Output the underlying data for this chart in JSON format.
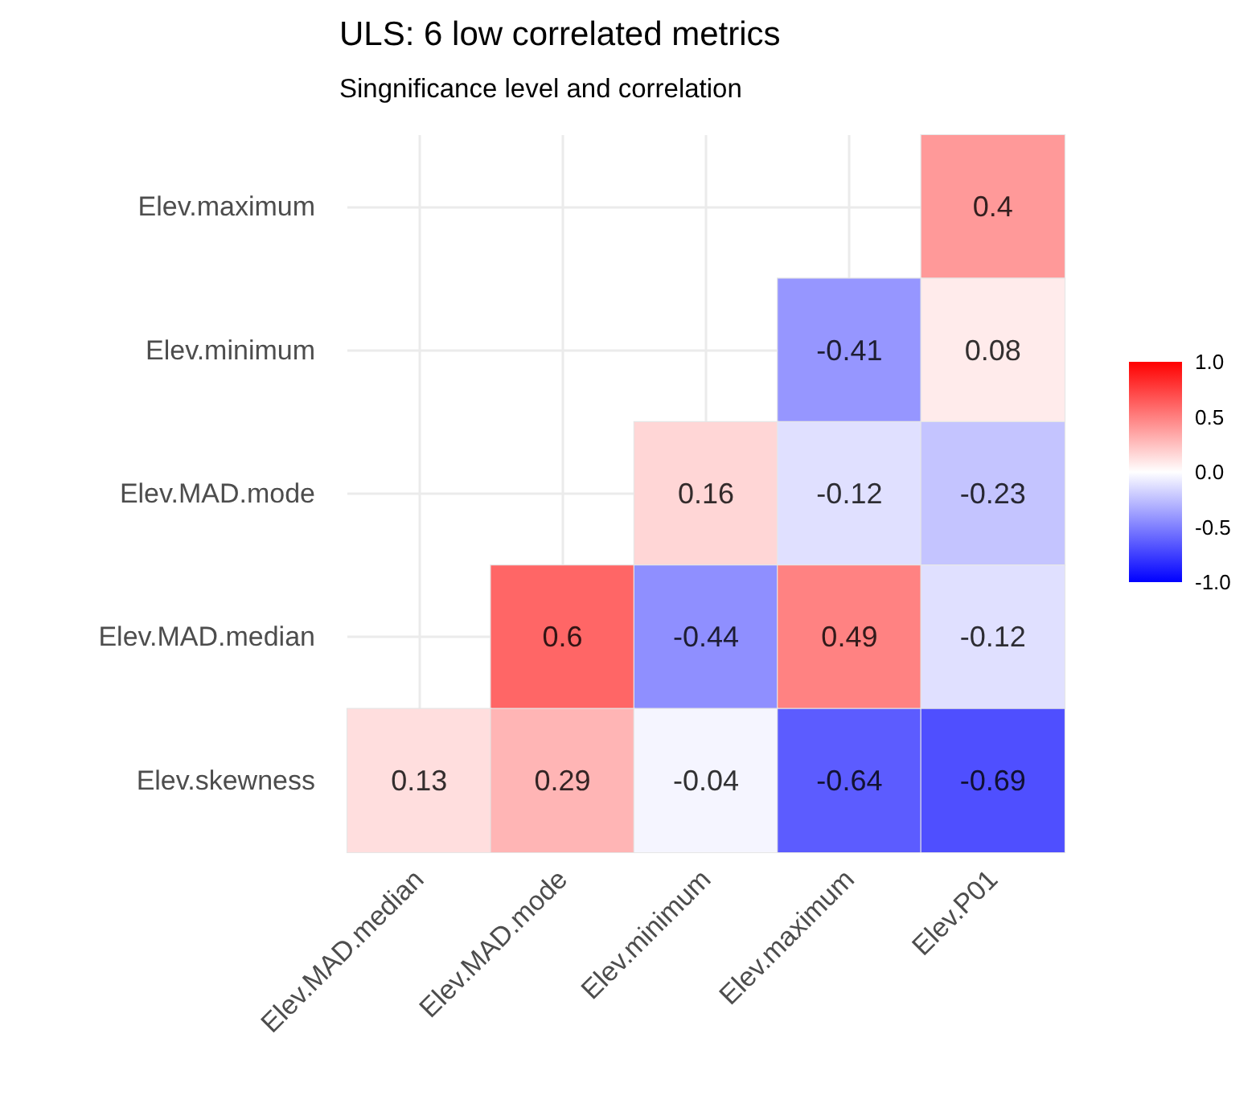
{
  "chart_data": {
    "type": "heatmap",
    "title": "ULS: 6 low correlated metrics",
    "subtitle": "Singnificance level and correlation",
    "categories": [
      "Elev.MAD.median",
      "Elev.MAD.mode",
      "Elev.minimum",
      "Elev.maximum",
      "Elev.P01"
    ],
    "y_categories": [
      "Elev.maximum",
      "Elev.minimum",
      "Elev.MAD.mode",
      "Elev.MAD.median",
      "Elev.skewness"
    ],
    "cells": [
      [
        null,
        null,
        null,
        null,
        0.4
      ],
      [
        null,
        null,
        null,
        -0.41,
        0.08
      ],
      [
        null,
        null,
        0.16,
        -0.12,
        -0.23
      ],
      [
        null,
        0.6,
        -0.44,
        0.49,
        -0.12
      ],
      [
        0.13,
        0.29,
        -0.04,
        -0.64,
        -0.69
      ]
    ],
    "clim": [
      -1,
      1
    ],
    "cticks": [
      {
        "value": -1,
        "label": "-1.0"
      },
      {
        "value": -0.5,
        "label": "-0.5"
      },
      {
        "value": 0,
        "label": "0.0"
      },
      {
        "value": 0.5,
        "label": "0.5"
      },
      {
        "value": 1,
        "label": "1.0"
      }
    ],
    "data_labels": true,
    "grid": true
  }
}
